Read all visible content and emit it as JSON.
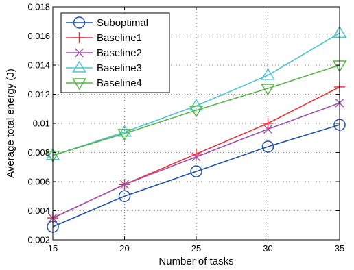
{
  "chart_data": {
    "type": "line",
    "x": [
      15,
      20,
      25,
      30,
      35
    ],
    "xlabel": "Number of tasks",
    "ylabel": "Average total energy (J)",
    "xlim": [
      15,
      35
    ],
    "ylim": [
      0.002,
      0.018
    ],
    "x_ticks": [
      "15",
      "20",
      "25",
      "30",
      "35"
    ],
    "y_ticks": [
      "0.002",
      "0.004",
      "0.006",
      "0.008",
      "0.01",
      "0.012",
      "0.014",
      "0.016",
      "0.018"
    ],
    "grid": true,
    "legend_position": "top-left",
    "series": [
      {
        "name": "Suboptimal",
        "values": [
          0.0029,
          0.005,
          0.0067,
          0.0084,
          0.0099
        ],
        "color": "#1f4fa5",
        "marker": "circle"
      },
      {
        "name": "Baseline1",
        "values": [
          0.0035,
          0.0058,
          0.0079,
          0.01,
          0.0125
        ],
        "color": "#e8333a",
        "marker": "plus"
      },
      {
        "name": "Baseline2",
        "values": [
          0.0035,
          0.0058,
          0.0077,
          0.0096,
          0.0114
        ],
        "color": "#a050a8",
        "marker": "x"
      },
      {
        "name": "Baseline3",
        "values": [
          0.0078,
          0.0094,
          0.0112,
          0.0133,
          0.0162
        ],
        "color": "#4fc3d5",
        "marker": "triangle-up"
      },
      {
        "name": "Baseline4",
        "values": [
          0.0078,
          0.0093,
          0.0109,
          0.0124,
          0.014
        ],
        "color": "#5ab14a",
        "marker": "triangle-down"
      }
    ]
  }
}
